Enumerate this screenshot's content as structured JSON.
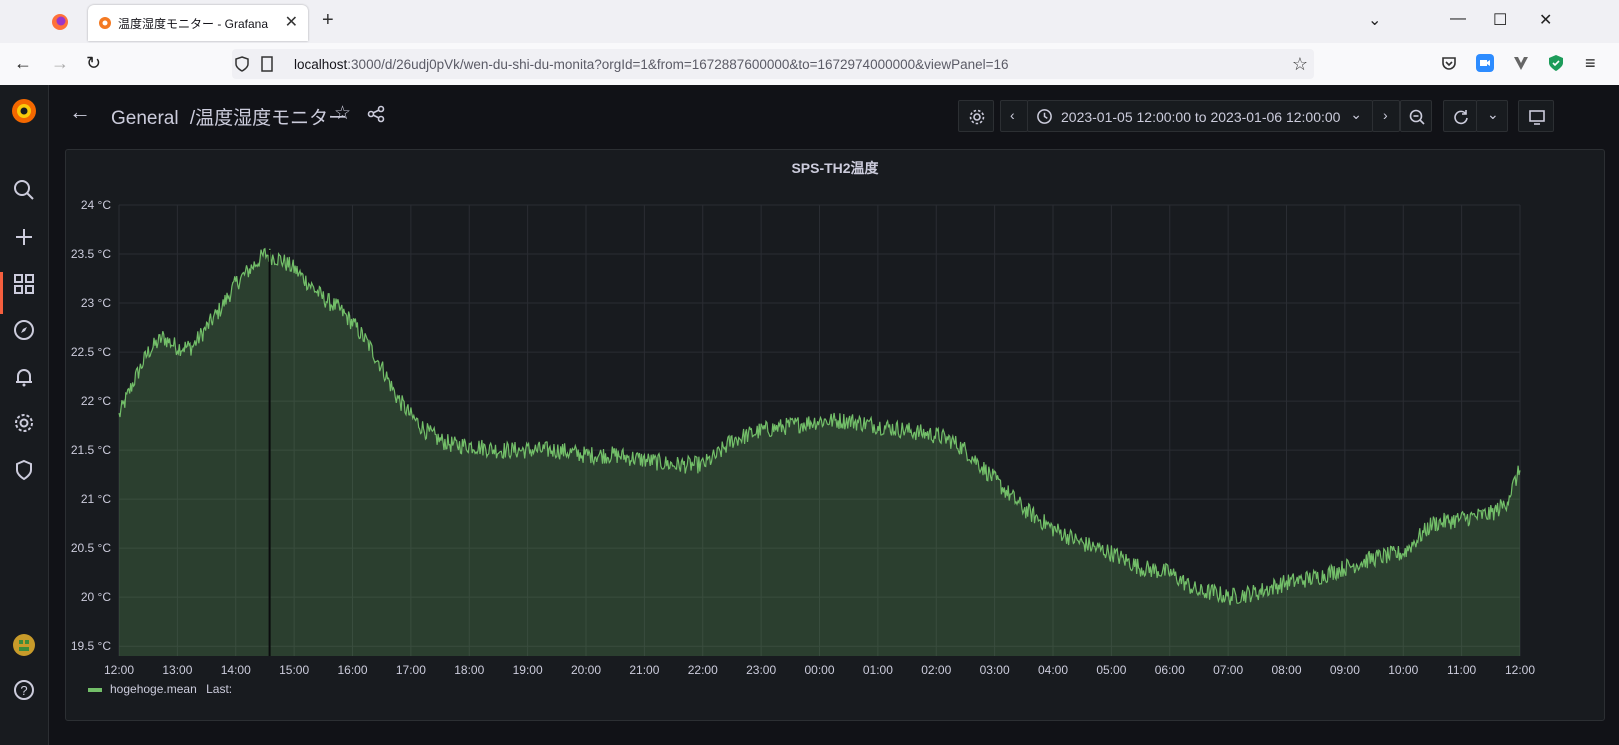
{
  "browser": {
    "tab_title": "温度湿度モニター - Grafana",
    "url_host": "localhost",
    "url_rest": ":3000/d/26udj0pVk/wen-du-shi-du-monita?orgId=1&from=1672887600000&to=1672974000000&viewPanel=16",
    "icons": [
      "firefox-icon",
      "grafana-favicon",
      "close-icon",
      "plus-icon",
      "back-icon",
      "forward-icon",
      "reload-icon",
      "shield-icon",
      "page-icon",
      "star-icon",
      "pocket-icon",
      "zoom-extension-icon",
      "extension-icon",
      "shield-extension-icon",
      "menu-icon"
    ]
  },
  "grafana": {
    "breadcrumb_folder": "General",
    "breadcrumb_separator": "/",
    "dashboard_title": "温度湿度モニター",
    "time_range": "2023-01-05 12:00:00 to 2023-01-06 12:00:00",
    "sidebar_icons": [
      "grafana-logo-icon",
      "search-icon",
      "plus-icon",
      "dashboards-icon",
      "explore-icon",
      "alerting-icon",
      "settings-icon",
      "shield-icon",
      "avatar",
      "help-icon"
    ],
    "accent_color": "#f55f3e"
  },
  "panel": {
    "title": "SPS-TH2温度",
    "legend_series": "hogehoge.mean",
    "legend_last": "Last:"
  },
  "chart_data": {
    "type": "area",
    "title": "SPS-TH2温度",
    "series": [
      {
        "name": "hogehoge.mean",
        "color": "#73bf69"
      }
    ],
    "x": [
      "12:00",
      "13:00",
      "14:00",
      "15:00",
      "16:00",
      "17:00",
      "18:00",
      "19:00",
      "20:00",
      "21:00",
      "22:00",
      "23:00",
      "00:00",
      "01:00",
      "02:00",
      "03:00",
      "04:00",
      "05:00",
      "06:00",
      "07:00",
      "08:00",
      "09:00",
      "10:00",
      "11:00",
      "12:00"
    ],
    "y_ticks": [
      "24 °C",
      "23.5 °C",
      "23 °C",
      "22.5 °C",
      "22 °C",
      "21.5 °C",
      "21 °C",
      "20.5 °C",
      "20 °C",
      "19.5 °C"
    ],
    "ylim": [
      19.4,
      24
    ],
    "y_unit": "°C",
    "values": [
      [
        0,
        21.85
      ],
      [
        0.25,
        22.2
      ],
      [
        0.5,
        22.5
      ],
      [
        0.75,
        22.65
      ],
      [
        1,
        22.55
      ],
      [
        1.25,
        22.55
      ],
      [
        1.5,
        22.75
      ],
      [
        1.75,
        22.95
      ],
      [
        2,
        23.2
      ],
      [
        2.25,
        23.35
      ],
      [
        2.5,
        23.5
      ],
      [
        2.75,
        23.45
      ],
      [
        3,
        23.35
      ],
      [
        3.25,
        23.2
      ],
      [
        3.5,
        23.05
      ],
      [
        3.75,
        22.95
      ],
      [
        4,
        22.8
      ],
      [
        4.25,
        22.6
      ],
      [
        4.5,
        22.35
      ],
      [
        4.75,
        22.05
      ],
      [
        5,
        21.85
      ],
      [
        5.25,
        21.7
      ],
      [
        5.5,
        21.6
      ],
      [
        5.75,
        21.55
      ],
      [
        6,
        21.55
      ],
      [
        6.5,
        21.5
      ],
      [
        7,
        21.5
      ],
      [
        7.5,
        21.5
      ],
      [
        8,
        21.45
      ],
      [
        8.5,
        21.45
      ],
      [
        9,
        21.4
      ],
      [
        9.5,
        21.35
      ],
      [
        10,
        21.35
      ],
      [
        10.25,
        21.45
      ],
      [
        10.5,
        21.6
      ],
      [
        10.75,
        21.65
      ],
      [
        11,
        21.7
      ],
      [
        11.5,
        21.75
      ],
      [
        12,
        21.8
      ],
      [
        12.5,
        21.8
      ],
      [
        13,
        21.75
      ],
      [
        13.5,
        21.7
      ],
      [
        14,
        21.65
      ],
      [
        14.25,
        21.6
      ],
      [
        14.5,
        21.5
      ],
      [
        14.75,
        21.35
      ],
      [
        15,
        21.2
      ],
      [
        15.25,
        21.05
      ],
      [
        15.5,
        20.9
      ],
      [
        15.75,
        20.8
      ],
      [
        16,
        20.7
      ],
      [
        16.5,
        20.55
      ],
      [
        17,
        20.45
      ],
      [
        17.5,
        20.3
      ],
      [
        18,
        20.25
      ],
      [
        18.25,
        20.15
      ],
      [
        18.5,
        20.05
      ],
      [
        18.75,
        20.05
      ],
      [
        19,
        20
      ],
      [
        19.5,
        20.05
      ],
      [
        20,
        20.15
      ],
      [
        20.5,
        20.2
      ],
      [
        21,
        20.3
      ],
      [
        21.5,
        20.4
      ],
      [
        22,
        20.45
      ],
      [
        22.25,
        20.6
      ],
      [
        22.5,
        20.75
      ],
      [
        23,
        20.8
      ],
      [
        23.5,
        20.85
      ],
      [
        23.75,
        20.95
      ],
      [
        24,
        21.3
      ]
    ]
  }
}
